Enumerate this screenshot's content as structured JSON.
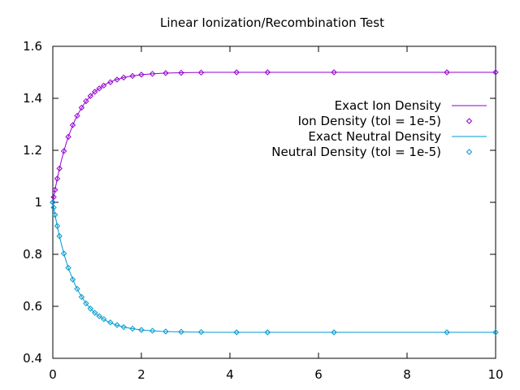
{
  "chart_data": {
    "type": "line",
    "title": "Linear Ionization/Recombination Test",
    "xlabel": "",
    "ylabel": "",
    "xlim": [
      0,
      10
    ],
    "ylim": [
      0.4,
      1.6
    ],
    "xticks": [
      "0",
      "2",
      "4",
      "6",
      "8",
      "10"
    ],
    "yticks": [
      "0.4",
      "0.6",
      "0.8",
      "1",
      "1.2",
      "1.4",
      "1.6"
    ],
    "grid": false,
    "legend_position": "top-right",
    "series": [
      {
        "name": "Exact Ion Density",
        "style": "line",
        "color": "#9400D3",
        "x": [
          0,
          0.02,
          0.05,
          0.1,
          0.15,
          0.2,
          0.25,
          0.3,
          0.35,
          0.4,
          0.5,
          0.6,
          0.7,
          0.8,
          0.9,
          1.0,
          1.2,
          1.4,
          1.6,
          1.8,
          2.0,
          2.25,
          2.5,
          3.0,
          3.5,
          4.0,
          5.0,
          6.0,
          7.0,
          8.0,
          9.0,
          10.0
        ],
        "y": [
          1.0,
          1.02,
          1.048,
          1.091,
          1.13,
          1.165,
          1.197,
          1.226,
          1.252,
          1.275,
          1.316,
          1.349,
          1.377,
          1.399,
          1.418,
          1.432,
          1.455,
          1.47,
          1.48,
          1.486,
          1.491,
          1.494,
          1.497,
          1.499,
          1.5,
          1.5,
          1.5,
          1.5,
          1.5,
          1.5,
          1.5,
          1.5
        ]
      },
      {
        "name": "Ion Density (tol = 1e-5)",
        "style": "points",
        "color": "#9400D3",
        "x": [
          0,
          0.02,
          0.05,
          0.1,
          0.15,
          0.25,
          0.35,
          0.45,
          0.55,
          0.65,
          0.75,
          0.85,
          0.95,
          1.05,
          1.15,
          1.3,
          1.45,
          1.6,
          1.8,
          2.0,
          2.25,
          2.55,
          2.9,
          3.35,
          4.15,
          4.85,
          6.35,
          8.9,
          10.0
        ],
        "y": [
          1.0,
          1.02,
          1.048,
          1.091,
          1.13,
          1.197,
          1.252,
          1.297,
          1.333,
          1.364,
          1.389,
          1.409,
          1.425,
          1.438,
          1.449,
          1.462,
          1.472,
          1.48,
          1.486,
          1.491,
          1.494,
          1.497,
          1.498,
          1.499,
          1.5,
          1.5,
          1.5,
          1.5,
          1.5
        ]
      },
      {
        "name": "Exact Neutral Density",
        "style": "line",
        "color": "#009ACD",
        "x": [
          0,
          0.02,
          0.05,
          0.1,
          0.15,
          0.2,
          0.25,
          0.3,
          0.35,
          0.4,
          0.5,
          0.6,
          0.7,
          0.8,
          0.9,
          1.0,
          1.2,
          1.4,
          1.6,
          1.8,
          2.0,
          2.25,
          2.5,
          3.0,
          3.5,
          4.0,
          5.0,
          6.0,
          7.0,
          8.0,
          9.0,
          10.0
        ],
        "y": [
          1.0,
          0.98,
          0.952,
          0.909,
          0.87,
          0.835,
          0.803,
          0.774,
          0.748,
          0.725,
          0.684,
          0.651,
          0.623,
          0.601,
          0.582,
          0.568,
          0.545,
          0.53,
          0.52,
          0.514,
          0.509,
          0.506,
          0.503,
          0.501,
          0.5,
          0.5,
          0.5,
          0.5,
          0.5,
          0.5,
          0.5,
          0.5
        ]
      },
      {
        "name": "Neutral Density (tol = 1e-5)",
        "style": "points",
        "color": "#009ACD",
        "x": [
          0,
          0.02,
          0.05,
          0.1,
          0.15,
          0.25,
          0.35,
          0.45,
          0.55,
          0.65,
          0.75,
          0.85,
          0.95,
          1.05,
          1.15,
          1.3,
          1.45,
          1.6,
          1.8,
          2.0,
          2.25,
          2.55,
          2.9,
          3.35,
          4.15,
          4.85,
          6.35,
          8.9,
          10.0
        ],
        "y": [
          1.0,
          0.98,
          0.952,
          0.909,
          0.87,
          0.803,
          0.748,
          0.703,
          0.667,
          0.636,
          0.611,
          0.591,
          0.575,
          0.562,
          0.551,
          0.538,
          0.528,
          0.52,
          0.514,
          0.509,
          0.506,
          0.503,
          0.502,
          0.501,
          0.5,
          0.5,
          0.5,
          0.5,
          0.5
        ]
      }
    ]
  }
}
